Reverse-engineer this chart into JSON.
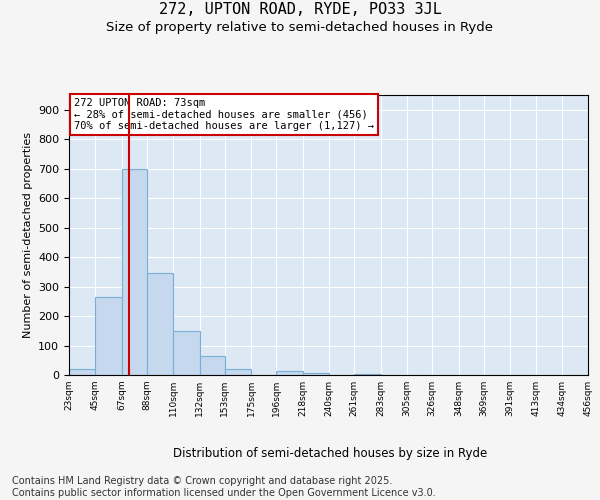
{
  "title_line1": "272, UPTON ROAD, RYDE, PO33 3JL",
  "title_line2": "Size of property relative to semi-detached houses in Ryde",
  "xlabel": "Distribution of semi-detached houses by size in Ryde",
  "ylabel": "Number of semi-detached properties",
  "bar_color": "#c5d8ed",
  "bar_edge_color": "#7aafd4",
  "grid_color": "#ffffff",
  "bg_color": "#dce9f5",
  "annotation_box_edgecolor": "#cc0000",
  "annotation_text": "272 UPTON ROAD: 73sqm\n← 28% of semi-detached houses are smaller (456)\n70% of semi-detached houses are larger (1,127) →",
  "vline_x": 73,
  "vline_color": "#cc0000",
  "bin_edges": [
    23,
    45,
    67,
    88,
    110,
    132,
    153,
    175,
    196,
    218,
    240,
    261,
    283,
    305,
    326,
    348,
    369,
    391,
    413,
    434,
    456
  ],
  "bar_heights": [
    20,
    265,
    700,
    345,
    150,
    65,
    20,
    0,
    12,
    8,
    0,
    3,
    0,
    0,
    0,
    0,
    0,
    0,
    0,
    0
  ],
  "ylim": [
    0,
    950
  ],
  "yticks": [
    0,
    100,
    200,
    300,
    400,
    500,
    600,
    700,
    800,
    900
  ],
  "footnote": "Contains HM Land Registry data © Crown copyright and database right 2025.\nContains public sector information licensed under the Open Government Licence v3.0.",
  "footnote_fontsize": 7,
  "title_fontsize1": 11,
  "title_fontsize2": 9.5,
  "fig_facecolor": "#f5f5f5"
}
